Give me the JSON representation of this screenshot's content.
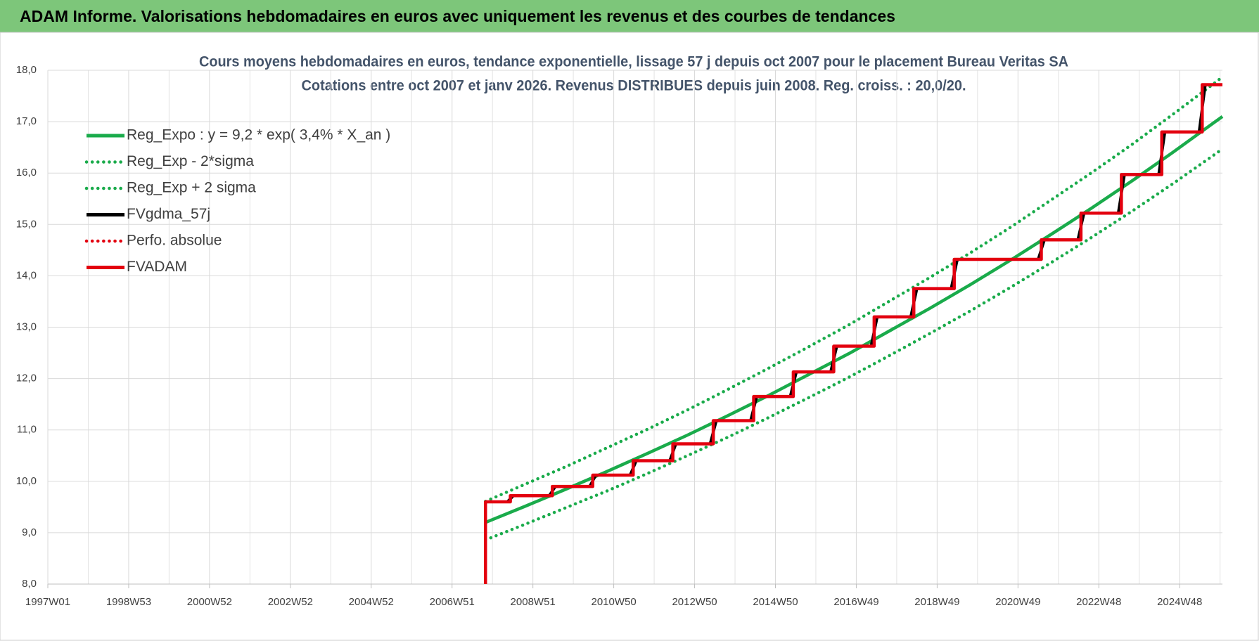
{
  "header": {
    "title": "ADAM Informe. Valorisations hebdomadaires en euros avec uniquement les revenus et des courbes de tendances"
  },
  "chart_data": {
    "type": "line",
    "title": "Cours moyens hebdomadaires en euros, tendance exponentielle, lissage 57 j depuis oct 2007 pour le placement Bureau Veritas SA",
    "subtitle": "Cotations entre oct 2007 et janv 2026. Revenus DISTRIBUES depuis juin 2008. Reg. croiss. : 20,0/20.",
    "xlim": [
      0,
      1511
    ],
    "xticks": [
      {
        "value": 0,
        "label": "1997W01"
      },
      {
        "value": 104,
        "label": "1998W53"
      },
      {
        "value": 208,
        "label": "2000W52"
      },
      {
        "value": 312,
        "label": "2002W52"
      },
      {
        "value": 416,
        "label": "2004W52"
      },
      {
        "value": 520,
        "label": "2006W51"
      },
      {
        "value": 624,
        "label": "2008W51"
      },
      {
        "value": 728,
        "label": "2010W50"
      },
      {
        "value": 832,
        "label": "2012W50"
      },
      {
        "value": 936,
        "label": "2014W50"
      },
      {
        "value": 1040,
        "label": "2016W49"
      },
      {
        "value": 1144,
        "label": "2018W49"
      },
      {
        "value": 1248,
        "label": "2020W49"
      },
      {
        "value": 1352,
        "label": "2022W48"
      },
      {
        "value": 1456,
        "label": "2024W48"
      }
    ],
    "x_minor_ticks": [
      52,
      156,
      260,
      364,
      468,
      572,
      676,
      780,
      884,
      988,
      1092,
      1196,
      1300,
      1404,
      1508
    ],
    "ylim": [
      8,
      18
    ],
    "yticks": [
      {
        "value": 8,
        "label": "8,0"
      },
      {
        "value": 9,
        "label": "9,0"
      },
      {
        "value": 10,
        "label": "10,0"
      },
      {
        "value": 11,
        "label": "11,0"
      },
      {
        "value": 12,
        "label": "12,0"
      },
      {
        "value": 13,
        "label": "13,0"
      },
      {
        "value": 14,
        "label": "14,0"
      },
      {
        "value": 15,
        "label": "15,0"
      },
      {
        "value": 16,
        "label": "16,0"
      },
      {
        "value": 17,
        "label": "17,0"
      },
      {
        "value": 18,
        "label": "18,0"
      }
    ],
    "grid": true,
    "legend": "upper left",
    "series": [
      {
        "name": "Reg_Expo : y = 9,2 * exp( 3,4% * X_an )",
        "color": "#1aab4b",
        "style": "solid",
        "x": [
          563,
          615,
          667,
          719,
          771,
          823,
          875,
          927,
          979,
          1031,
          1083,
          1135,
          1187,
          1239,
          1291,
          1343,
          1395,
          1447,
          1499,
          1511
        ],
        "values": [
          9.2,
          9.52,
          9.85,
          10.19,
          10.54,
          10.9,
          11.28,
          11.67,
          12.08,
          12.49,
          12.93,
          13.37,
          13.83,
          14.31,
          14.81,
          15.32,
          15.85,
          16.4,
          16.97,
          17.1
        ]
      },
      {
        "name": "Reg_Exp - 2*sigma",
        "color": "#1aab4b",
        "style": "dotted",
        "x": [
          563,
          615,
          667,
          719,
          771,
          823,
          875,
          927,
          979,
          1031,
          1083,
          1135,
          1187,
          1239,
          1291,
          1343,
          1395,
          1447,
          1499,
          1511
        ],
        "values": [
          8.86,
          9.17,
          9.49,
          9.81,
          10.15,
          10.5,
          10.86,
          11.24,
          11.63,
          12.03,
          12.45,
          12.88,
          13.32,
          13.78,
          14.26,
          14.75,
          15.26,
          15.79,
          16.34,
          16.47
        ]
      },
      {
        "name": "Reg_Exp + 2 sigma",
        "color": "#1aab4b",
        "style": "dotted",
        "x": [
          563,
          615,
          667,
          719,
          771,
          823,
          875,
          927,
          979,
          1031,
          1083,
          1135,
          1187,
          1239,
          1291,
          1343,
          1395,
          1447,
          1499,
          1511
        ],
        "values": [
          9.61,
          9.95,
          10.29,
          10.65,
          11.01,
          11.39,
          11.79,
          12.2,
          12.62,
          13.05,
          13.51,
          13.97,
          14.45,
          14.95,
          15.48,
          16.01,
          16.56,
          17.14,
          17.73,
          17.87
        ]
      },
      {
        "name": "FVgdma_57j",
        "color": "#000000",
        "style": "solid",
        "x": [
          563,
          591,
          599,
          645,
          653,
          697,
          705,
          749,
          757,
          800,
          808,
          852,
          860,
          904,
          912,
          955,
          963,
          1007,
          1015,
          1059,
          1067,
          1110,
          1118,
          1162,
          1170,
          1274,
          1282,
          1325,
          1333,
          1377,
          1385,
          1429,
          1437,
          1481,
          1489,
          1511
        ],
        "values": [
          9.6,
          9.6,
          9.72,
          9.72,
          9.9,
          9.9,
          10.12,
          10.12,
          10.4,
          10.4,
          10.73,
          10.73,
          11.18,
          11.18,
          11.65,
          11.65,
          12.13,
          12.13,
          12.63,
          12.63,
          13.2,
          13.2,
          13.75,
          13.75,
          14.32,
          14.32,
          14.7,
          14.7,
          15.22,
          15.22,
          15.97,
          15.97,
          16.8,
          16.8,
          17.72,
          17.72
        ]
      },
      {
        "name": "Perfo. absolue",
        "color": "#e3000f",
        "style": "dotted",
        "x": [],
        "values": []
      },
      {
        "name": "FVADAM",
        "color": "#e3000f",
        "style": "solid",
        "x": [
          563,
          563,
          595,
          595,
          649,
          649,
          701,
          701,
          753,
          753,
          804,
          804,
          856,
          856,
          908,
          908,
          959,
          959,
          1011,
          1011,
          1063,
          1063,
          1114,
          1114,
          1166,
          1166,
          1278,
          1278,
          1329,
          1329,
          1381,
          1381,
          1433,
          1433,
          1485,
          1485,
          1511
        ],
        "values": [
          8.0,
          9.6,
          9.6,
          9.72,
          9.72,
          9.9,
          9.9,
          10.12,
          10.12,
          10.4,
          10.4,
          10.73,
          10.73,
          11.18,
          11.18,
          11.65,
          11.65,
          12.13,
          12.13,
          12.63,
          12.63,
          13.2,
          13.2,
          13.75,
          13.75,
          14.32,
          14.32,
          14.7,
          14.7,
          15.22,
          15.22,
          15.97,
          15.97,
          16.8,
          16.8,
          17.72,
          17.72
        ]
      }
    ]
  }
}
